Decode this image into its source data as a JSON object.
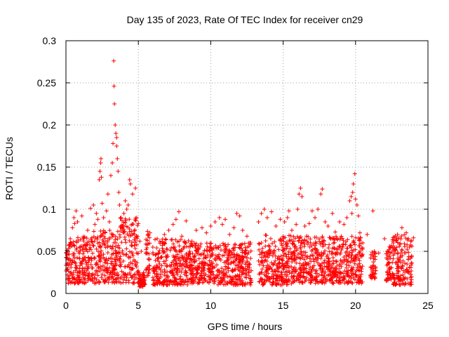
{
  "chart_data": {
    "type": "scatter",
    "title": "Day 135 of 2023, Rate Of TEC Index for receiver cn29",
    "xlabel": "GPS time / hours",
    "ylabel": "ROTI / TECUs",
    "xlim": [
      0,
      24
    ],
    "ylim": [
      0,
      0.3
    ],
    "x_ticks": [
      0,
      5,
      10,
      15,
      20,
      25
    ],
    "y_ticks": [
      0,
      0.05,
      0.1,
      0.15,
      0.2,
      0.25,
      0.3
    ],
    "x_tick_labels": [
      "0",
      "5",
      "10",
      "15",
      "20",
      "25"
    ],
    "y_tick_labels": [
      "0",
      "0.05",
      "0.1",
      "0.15",
      "0.2",
      "0.25",
      "0.3"
    ],
    "grid": true,
    "marker": "+",
    "color": "#ff0000",
    "series": [
      {
        "name": "",
        "points": [
          [
            0.1,
            0.042
          ],
          [
            0.2,
            0.057
          ],
          [
            0.3,
            0.065
          ],
          [
            0.45,
            0.078
          ],
          [
            0.55,
            0.09
          ],
          [
            0.6,
            0.083
          ],
          [
            0.7,
            0.098
          ],
          [
            0.8,
            0.085
          ],
          [
            1.0,
            0.064
          ],
          [
            1.1,
            0.092
          ],
          [
            1.3,
            0.058
          ],
          [
            1.5,
            0.075
          ],
          [
            1.7,
            0.101
          ],
          [
            1.9,
            0.105
          ],
          [
            2.0,
            0.082
          ],
          [
            2.1,
            0.095
          ],
          [
            2.2,
            0.088
          ],
          [
            2.3,
            0.135
          ],
          [
            2.35,
            0.145
          ],
          [
            2.4,
            0.155
          ],
          [
            2.42,
            0.16
          ],
          [
            2.45,
            0.138
          ],
          [
            2.5,
            0.107
          ],
          [
            2.6,
            0.09
          ],
          [
            2.7,
            0.073
          ],
          [
            2.8,
            0.098
          ],
          [
            2.9,
            0.118
          ],
          [
            3.0,
            0.085
          ],
          [
            3.1,
            0.14
          ],
          [
            3.2,
            0.155
          ],
          [
            3.25,
            0.178
          ],
          [
            3.3,
            0.276
          ],
          [
            3.32,
            0.246
          ],
          [
            3.35,
            0.225
          ],
          [
            3.4,
            0.2
          ],
          [
            3.45,
            0.19
          ],
          [
            3.5,
            0.175
          ],
          [
            3.5,
            0.185
          ],
          [
            3.55,
            0.16
          ],
          [
            3.6,
            0.145
          ],
          [
            3.65,
            0.12
          ],
          [
            3.7,
            0.105
          ],
          [
            3.8,
            0.09
          ],
          [
            3.9,
            0.08
          ],
          [
            4.0,
            0.095
          ],
          [
            4.1,
            0.11
          ],
          [
            4.2,
            0.1
          ],
          [
            4.3,
            0.105
          ],
          [
            4.4,
            0.135
          ],
          [
            4.45,
            0.13
          ],
          [
            4.6,
            0.118
          ],
          [
            4.8,
            0.125
          ],
          [
            5.0,
            0.083
          ],
          [
            5.1,
            0.062
          ],
          [
            5.2,
            0.05
          ],
          [
            5.8,
            0.072
          ],
          [
            6.0,
            0.055
          ],
          [
            6.3,
            0.065
          ],
          [
            6.5,
            0.06
          ],
          [
            6.8,
            0.07
          ],
          [
            7.1,
            0.075
          ],
          [
            7.4,
            0.082
          ],
          [
            7.6,
            0.088
          ],
          [
            7.8,
            0.097
          ],
          [
            8.0,
            0.068
          ],
          [
            8.3,
            0.086
          ],
          [
            8.7,
            0.062
          ],
          [
            9.0,
            0.075
          ],
          [
            9.4,
            0.078
          ],
          [
            9.7,
            0.072
          ],
          [
            10.0,
            0.08
          ],
          [
            10.3,
            0.085
          ],
          [
            10.6,
            0.09
          ],
          [
            10.8,
            0.082
          ],
          [
            11.0,
            0.088
          ],
          [
            11.3,
            0.07
          ],
          [
            11.6,
            0.078
          ],
          [
            11.8,
            0.095
          ],
          [
            12.0,
            0.092
          ],
          [
            12.2,
            0.075
          ],
          [
            12.5,
            0.068
          ],
          [
            12.7,
            0.06
          ],
          [
            13.3,
            0.085
          ],
          [
            13.5,
            0.095
          ],
          [
            13.7,
            0.1
          ],
          [
            13.9,
            0.09
          ],
          [
            14.2,
            0.097
          ],
          [
            14.5,
            0.08
          ],
          [
            14.8,
            0.088
          ],
          [
            15.1,
            0.085
          ],
          [
            15.3,
            0.09
          ],
          [
            15.4,
            0.098
          ],
          [
            15.6,
            0.075
          ],
          [
            15.9,
            0.082
          ],
          [
            16.0,
            0.1
          ],
          [
            16.1,
            0.118
          ],
          [
            16.2,
            0.125
          ],
          [
            16.3,
            0.115
          ],
          [
            16.5,
            0.08
          ],
          [
            16.8,
            0.083
          ],
          [
            17.0,
            0.098
          ],
          [
            17.2,
            0.09
          ],
          [
            17.4,
            0.1
          ],
          [
            17.6,
            0.118
          ],
          [
            17.7,
            0.124
          ],
          [
            17.9,
            0.085
          ],
          [
            18.1,
            0.08
          ],
          [
            18.4,
            0.095
          ],
          [
            18.6,
            0.073
          ],
          [
            18.9,
            0.085
          ],
          [
            19.2,
            0.082
          ],
          [
            19.4,
            0.09
          ],
          [
            19.6,
            0.11
          ],
          [
            19.7,
            0.115
          ],
          [
            19.75,
            0.095
          ],
          [
            19.8,
            0.12
          ],
          [
            19.85,
            0.13
          ],
          [
            19.95,
            0.142
          ],
          [
            20.0,
            0.112
          ],
          [
            20.1,
            0.105
          ],
          [
            20.2,
            0.092
          ],
          [
            20.3,
            0.072
          ],
          [
            20.5,
            0.06
          ],
          [
            20.8,
            0.07
          ],
          [
            21.2,
            0.098
          ],
          [
            21.3,
            0.05
          ],
          [
            21.6,
            0.048
          ],
          [
            22.0,
            0.065
          ],
          [
            22.3,
            0.052
          ],
          [
            22.6,
            0.06
          ],
          [
            22.9,
            0.07
          ],
          [
            23.2,
            0.078
          ],
          [
            23.5,
            0.072
          ],
          [
            23.8,
            0.062
          ],
          [
            24.0,
            0.066
          ]
        ],
        "dense_bands": [
          {
            "x": [
              0.0,
              0.6
            ],
            "y": [
              0.012,
              0.062
            ]
          },
          {
            "x": [
              0.6,
              1.9
            ],
            "y": [
              0.012,
              0.07
            ]
          },
          {
            "x": [
              1.9,
              3.6
            ],
            "y": [
              0.012,
              0.075
            ]
          },
          {
            "x": [
              3.6,
              5.0
            ],
            "y": [
              0.012,
              0.09
            ]
          },
          {
            "x": [
              5.0,
              5.5
            ],
            "y": [
              0.008,
              0.025
            ]
          },
          {
            "x": [
              5.5,
              5.8
            ],
            "y": [
              0.02,
              0.075
            ]
          },
          {
            "x": [
              6.0,
              8.5
            ],
            "y": [
              0.01,
              0.065
            ]
          },
          {
            "x": [
              8.5,
              10.5
            ],
            "y": [
              0.012,
              0.06
            ]
          },
          {
            "x": [
              10.5,
              12.8
            ],
            "y": [
              0.01,
              0.06
            ]
          },
          {
            "x": [
              13.3,
              15.6
            ],
            "y": [
              0.01,
              0.07
            ]
          },
          {
            "x": [
              15.6,
              17.5
            ],
            "y": [
              0.012,
              0.068
            ]
          },
          {
            "x": [
              17.5,
              20.5
            ],
            "y": [
              0.012,
              0.068
            ]
          },
          {
            "x": [
              21.0,
              21.4
            ],
            "y": [
              0.018,
              0.05
            ]
          },
          {
            "x": [
              22.1,
              22.5
            ],
            "y": [
              0.015,
              0.058
            ]
          },
          {
            "x": [
              22.5,
              23.9
            ],
            "y": [
              0.01,
              0.07
            ]
          }
        ]
      }
    ]
  }
}
